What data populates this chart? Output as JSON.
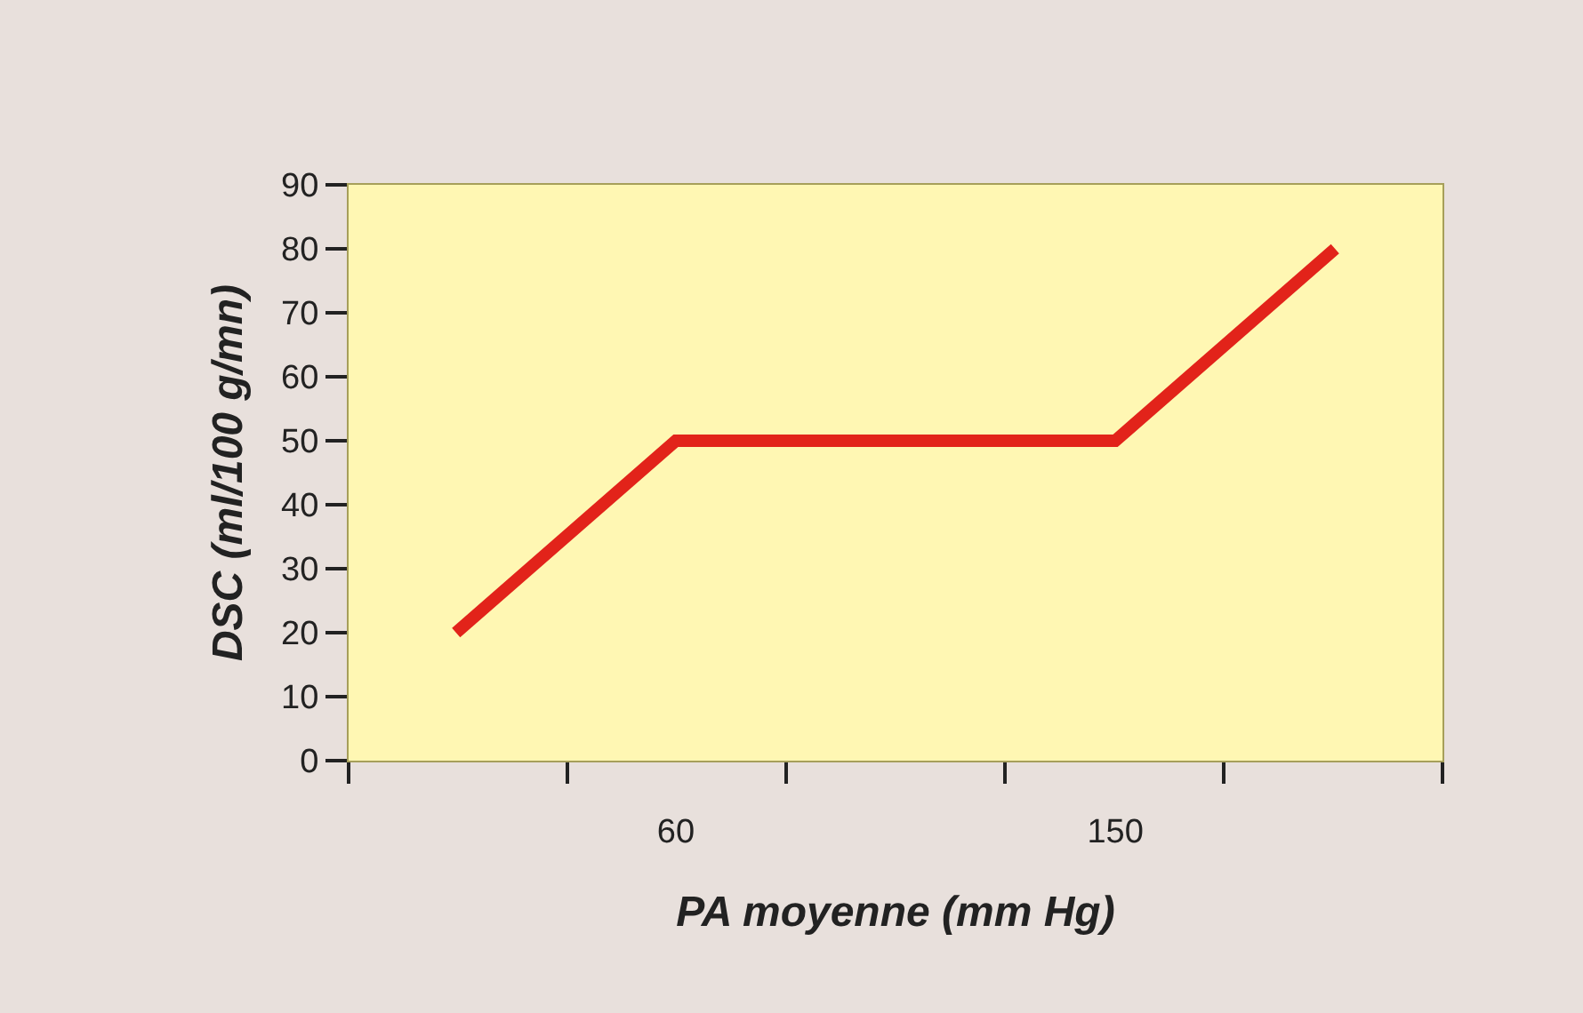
{
  "chart_data": {
    "type": "line",
    "xlabel": "PA moyenne (mm Hg)",
    "ylabel": "DSC (ml/100 g/mn)",
    "x": [
      15,
      60,
      150,
      195
    ],
    "series": [
      {
        "color": "#e2231a",
        "values": [
          20,
          50,
          50,
          80
        ]
      }
    ],
    "xlim": [
      -7,
      217
    ],
    "xticks": [
      {
        "value": -7,
        "label": null
      },
      {
        "value": 37.8,
        "label": null
      },
      60,
      {
        "value": 82.6,
        "label": null
      },
      {
        "value": 127.4,
        "label": null
      },
      150,
      {
        "value": 172.2,
        "label": null
      },
      {
        "value": 217,
        "label": null
      }
    ],
    "ylim": [
      0,
      90
    ],
    "yticks": [
      0,
      10,
      20,
      30,
      40,
      50,
      60,
      70,
      80,
      90
    ],
    "grid": false,
    "marker": "none",
    "line_style": "solid"
  }
}
